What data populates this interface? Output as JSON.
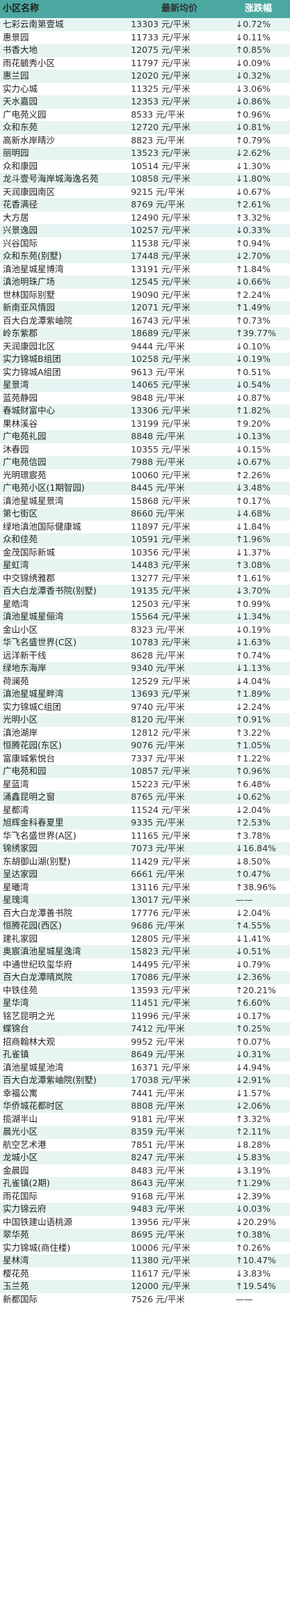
{
  "header": {
    "name": "小区名称",
    "price": "最新均价",
    "change": "涨跌幅"
  },
  "rows": [
    {
      "name": "七彩云南第壹城",
      "price": "13303 元/平米",
      "change": "↓0.72%"
    },
    {
      "name": "惠景园",
      "price": "11733 元/平米",
      "change": "↓0.11%"
    },
    {
      "name": "书香大地",
      "price": "12075 元/平米",
      "change": "↑0.85%"
    },
    {
      "name": "雨花毓秀小区",
      "price": "11797 元/平米",
      "change": "↓0.09%"
    },
    {
      "name": "惠兰园",
      "price": "12020 元/平米",
      "change": "↓0.32%"
    },
    {
      "name": "实力心城",
      "price": "11325 元/平米",
      "change": "↓3.06%"
    },
    {
      "name": "天水嘉园",
      "price": "12353 元/平米",
      "change": "↓0.86%"
    },
    {
      "name": "广电苑义园",
      "price": "8533 元/平米",
      "change": "↑0.96%"
    },
    {
      "name": "众和东苑",
      "price": "12720 元/平米",
      "change": "↓0.81%"
    },
    {
      "name": "高新水岸晴沙",
      "price": "8823 元/平米",
      "change": "↑0.79%"
    },
    {
      "name": "丽明园",
      "price": "13523 元/平米",
      "change": "↓2.62%"
    },
    {
      "name": "众和康园",
      "price": "10514 元/平米",
      "change": "↓1.30%"
    },
    {
      "name": "龙斗壹号海岸城海逸名苑",
      "price": "10858 元/平米",
      "change": "↓1.80%"
    },
    {
      "name": "天润康园南区",
      "price": "9215 元/平米",
      "change": "↓0.67%"
    },
    {
      "name": "花香满径",
      "price": "8769 元/平米",
      "change": "↑2.61%"
    },
    {
      "name": "大方居",
      "price": "12490 元/平米",
      "change": "↑3.32%"
    },
    {
      "name": "兴景逸园",
      "price": "10257 元/平米",
      "change": "↓0.33%"
    },
    {
      "name": "兴谷国际",
      "price": "11538 元/平米",
      "change": "↑0.94%"
    },
    {
      "name": "众和东苑(别墅)",
      "price": "17448 元/平米",
      "change": "↓2.70%"
    },
    {
      "name": "滇池星城星博湾",
      "price": "13191 元/平米",
      "change": "↑1.84%"
    },
    {
      "name": "滇池明珠广场",
      "price": "12545 元/平米",
      "change": "↓0.66%"
    },
    {
      "name": "世林国际别墅",
      "price": "19090 元/平米",
      "change": "↑2.24%"
    },
    {
      "name": "新南亚风情园",
      "price": "12071 元/平米",
      "change": "↑1.49%"
    },
    {
      "name": "百大白龙潭紫岫院",
      "price": "16743 元/平米",
      "change": "↑0.73%"
    },
    {
      "name": "岭东紫郡",
      "price": "18689 元/平米",
      "change": "↑39.77%"
    },
    {
      "name": "天润康园北区",
      "price": "9444 元/平米",
      "change": "↓0.10%"
    },
    {
      "name": "实力锦城B组团",
      "price": "10258 元/平米",
      "change": "↓0.19%"
    },
    {
      "name": "实力锦城A组团",
      "price": "9613 元/平米",
      "change": "↑0.51%"
    },
    {
      "name": "星景湾",
      "price": "14065 元/平米",
      "change": "↓0.54%"
    },
    {
      "name": "蓝苑静园",
      "price": "9848 元/平米",
      "change": "↓0.87%"
    },
    {
      "name": "春城财富中心",
      "price": "13306 元/平米",
      "change": "↑1.82%"
    },
    {
      "name": "果林溪谷",
      "price": "13199 元/平米",
      "change": "↑9.20%"
    },
    {
      "name": "广电苑礼园",
      "price": "8848 元/平米",
      "change": "↓0.13%"
    },
    {
      "name": "沐春园",
      "price": "10355 元/平米",
      "change": "↓0.15%"
    },
    {
      "name": "广电苑信园",
      "price": "7988 元/平米",
      "change": "↓0.67%"
    },
    {
      "name": "光明璟宸苑",
      "price": "10060 元/平米",
      "change": "↑2.26%"
    },
    {
      "name": "广电苑小区(1期智园)",
      "price": "8445 元/平米",
      "change": "↓3.48%"
    },
    {
      "name": "滇池星城星景湾",
      "price": "15868 元/平米",
      "change": "↑0.17%"
    },
    {
      "name": "第七街区",
      "price": "8660 元/平米",
      "change": "↓4.68%"
    },
    {
      "name": "绿地滇池国际健康城",
      "price": "11897 元/平米",
      "change": "↓1.84%"
    },
    {
      "name": "众和佳苑",
      "price": "10591 元/平米",
      "change": "↑1.96%"
    },
    {
      "name": "金茂国际新城",
      "price": "10356 元/平米",
      "change": "↓1.37%"
    },
    {
      "name": "星虹湾",
      "price": "14483 元/平米",
      "change": "↑3.08%"
    },
    {
      "name": "中交锦绣雅郡",
      "price": "13277 元/平米",
      "change": "↑1.61%"
    },
    {
      "name": "百大白龙潭香书院(别墅)",
      "price": "19135 元/平米",
      "change": "↓3.70%"
    },
    {
      "name": "星皓湾",
      "price": "12503 元/平米",
      "change": "↑0.99%"
    },
    {
      "name": "滇池星城星俪湾",
      "price": "15564 元/平米",
      "change": "↓1.34%"
    },
    {
      "name": "金山小区",
      "price": "8323 元/平米",
      "change": "↓0.19%"
    },
    {
      "name": "华飞名盛世界(C区)",
      "price": "10783 元/平米",
      "change": "↓1.63%"
    },
    {
      "name": "远洋新干线",
      "price": "8628 元/平米",
      "change": "↑0.74%"
    },
    {
      "name": "绿地东海岸",
      "price": "9340 元/平米",
      "change": "↓1.13%"
    },
    {
      "name": "荷澜苑",
      "price": "12529 元/平米",
      "change": "↓4.04%"
    },
    {
      "name": "滇池星城星畔湾",
      "price": "13693 元/平米",
      "change": "↑1.89%"
    },
    {
      "name": "实力锦城C组团",
      "price": "9740 元/平米",
      "change": "↓2.24%"
    },
    {
      "name": "光明小区",
      "price": "8120 元/平米",
      "change": "↑0.91%"
    },
    {
      "name": "滇池湖岸",
      "price": "12812 元/平米",
      "change": "↑3.22%"
    },
    {
      "name": "恒腾花园(东区)",
      "price": "9076 元/平米",
      "change": "↑1.05%"
    },
    {
      "name": "富康城紫悦台",
      "price": "7337 元/平米",
      "change": "↑1.22%"
    },
    {
      "name": "广电苑和园",
      "price": "10857 元/平米",
      "change": "↑0.96%"
    },
    {
      "name": "星蓝湾",
      "price": "15223 元/平米",
      "change": "↑6.48%"
    },
    {
      "name": "涌鑫昆明之窗",
      "price": "8765 元/平米",
      "change": "↓0.62%"
    },
    {
      "name": "星都湾",
      "price": "11524 元/平米",
      "change": "↓2.04%"
    },
    {
      "name": "旭辉金科春夏里",
      "price": "9335 元/平米",
      "change": "↑2.53%"
    },
    {
      "name": "华飞名盛世界(A区)",
      "price": "11165 元/平米",
      "change": "↑3.78%"
    },
    {
      "name": "锦绣家园",
      "price": "7073 元/平米",
      "change": "↓16.84%"
    },
    {
      "name": "东胡御山湖(别墅)",
      "price": "11429 元/平米",
      "change": "↓8.50%"
    },
    {
      "name": "呈达家园",
      "price": "6661 元/平米",
      "change": "↑0.47%"
    },
    {
      "name": "星曦湾",
      "price": "13116 元/平米",
      "change": "↑38.96%"
    },
    {
      "name": "星瑰湾",
      "price": "13017 元/平米",
      "change": "——"
    },
    {
      "name": "百大白龙潭善书院",
      "price": "17776 元/平米",
      "change": "↓2.04%"
    },
    {
      "name": "恒腾花园(西区)",
      "price": "9686 元/平米",
      "change": "↑4.55%"
    },
    {
      "name": "建礼家园",
      "price": "12805 元/平米",
      "change": "↓1.41%"
    },
    {
      "name": "奥宸滇池星城星逸湾",
      "price": "15823 元/平米",
      "change": "↓0.51%"
    },
    {
      "name": "中通世纪玖玺华府",
      "price": "14495 元/平米",
      "change": "↓0.79%"
    },
    {
      "name": "百大白龙潭晴岚院",
      "price": "17086 元/平米",
      "change": "↓2.36%"
    },
    {
      "name": "中铁佳苑",
      "price": "13593 元/平米",
      "change": "↑20.21%"
    },
    {
      "name": "星华湾",
      "price": "11451 元/平米",
      "change": "↑6.60%"
    },
    {
      "name": "铭艺昆明之光",
      "price": "11996 元/平米",
      "change": "↓0.17%"
    },
    {
      "name": "蝶锦台",
      "price": "7412 元/平米",
      "change": "↑0.25%"
    },
    {
      "name": "招商翰林大观",
      "price": "9952 元/平米",
      "change": "↑0.07%"
    },
    {
      "name": "孔雀镇",
      "price": "8649 元/平米",
      "change": "↓0.31%"
    },
    {
      "name": "滇池星城星池湾",
      "price": "16371 元/平米",
      "change": "↓4.94%"
    },
    {
      "name": "百大白龙潭紫岫院(别墅)",
      "price": "17038 元/平米",
      "change": "↓2.91%"
    },
    {
      "name": "幸福公寓",
      "price": "7441 元/平米",
      "change": "↓1.57%"
    },
    {
      "name": "华侨城花都时区",
      "price": "8808 元/平米",
      "change": "↓2.06%"
    },
    {
      "name": "揽湖半山",
      "price": "9181 元/平米",
      "change": "↑3.32%"
    },
    {
      "name": "晨光小区",
      "price": "8359 元/平米",
      "change": "↑2.11%"
    },
    {
      "name": "航空艺术港",
      "price": "7851 元/平米",
      "change": "↓8.28%"
    },
    {
      "name": "龙城小区",
      "price": "8247 元/平米",
      "change": "↓5.83%"
    },
    {
      "name": "金晨园",
      "price": "8483 元/平米",
      "change": "↓3.19%"
    },
    {
      "name": "孔雀镇(2期)",
      "price": "8643 元/平米",
      "change": "↑1.29%"
    },
    {
      "name": "雨花国际",
      "price": "9168 元/平米",
      "change": "↓2.39%"
    },
    {
      "name": "实力锦云府",
      "price": "9483 元/平米",
      "change": "↓0.03%"
    },
    {
      "name": "中国铁建山语桃源",
      "price": "13956 元/平米",
      "change": "↓20.29%"
    },
    {
      "name": "翠华苑",
      "price": "8695 元/平米",
      "change": "↑0.38%"
    },
    {
      "name": "实力锦城(商住楼)",
      "price": "10006 元/平米",
      "change": "↑0.26%"
    },
    {
      "name": "星林湾",
      "price": "11380 元/平米",
      "change": "↑10.47%"
    },
    {
      "name": "樱花苑",
      "price": "11617 元/平米",
      "change": "↓3.83%"
    },
    {
      "name": "玉兰苑",
      "price": "12000 元/平米",
      "change": "↑19.54%"
    },
    {
      "name": "新都国际",
      "price": "7526 元/平米",
      "change": "——"
    }
  ]
}
